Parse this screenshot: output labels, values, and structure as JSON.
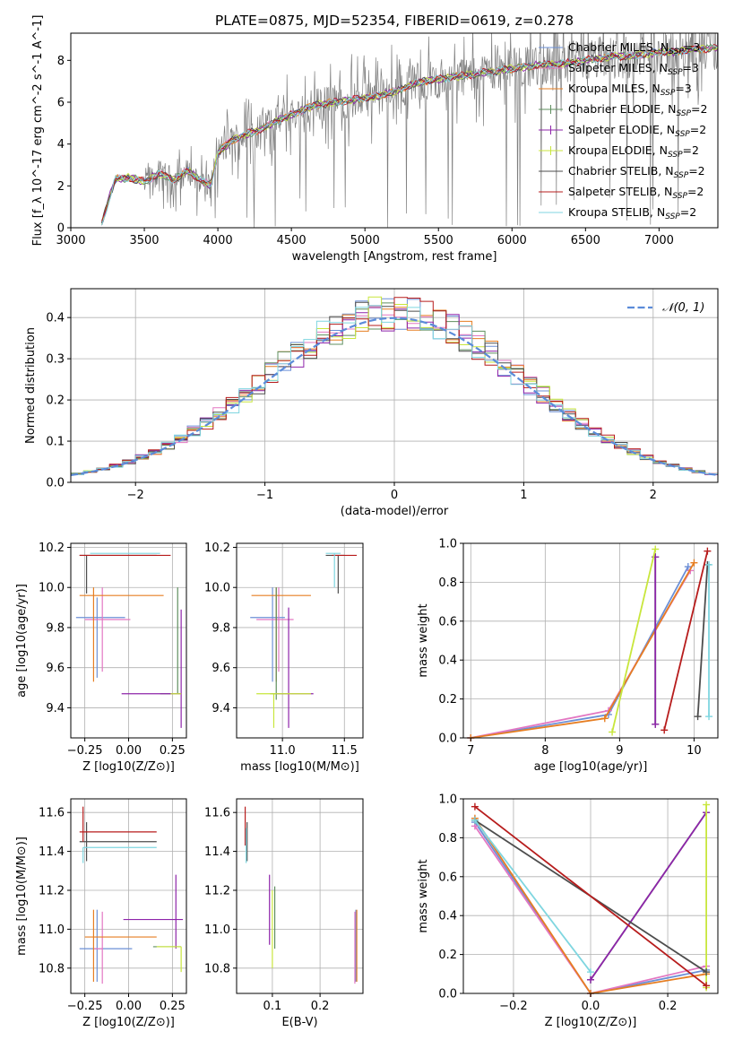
{
  "figure": {
    "title": "PLATE=0875, MJD=52354, FIBERID=0619, z=0.278"
  },
  "colors": {
    "chabrier_miles": "#6b8fd6",
    "salpeter_miles": "#e377c2",
    "kroupa_miles": "#e67e22",
    "chabrier_elodie": "#5f8f5f",
    "salpeter_elodie": "#8e24aa",
    "kroupa_elodie": "#c8e63c",
    "chabrier_stelib": "#4d4d4d",
    "salpeter_stelib": "#b71c1c",
    "kroupa_stelib": "#7fd6e0",
    "data_spectrum": "#808080",
    "gaussian": "#5b8bd9",
    "grid": "#b0b0b0"
  },
  "chart_data": [
    {
      "id": "spectrum",
      "type": "line",
      "xlabel": "wavelength [Angstrom, rest frame]",
      "ylabel": "Flux [f_λ 10^-17 erg cm^-2 s^-1 A^-1]",
      "xlim": [
        3000,
        7400
      ],
      "ylim": [
        0,
        9.3
      ],
      "xticks": [
        3000,
        3500,
        4000,
        4500,
        5000,
        5500,
        6000,
        6500,
        7000
      ],
      "yticks": [
        0,
        2,
        4,
        6,
        8
      ],
      "grid": false,
      "legend_position": "top-right",
      "legend": [
        {
          "label": "Chabrier MILES, N",
          "sub": "SSP",
          "tail": "=3",
          "color": "#6b8fd6"
        },
        {
          "label": "Salpeter MILES, N",
          "sub": "SSP",
          "tail": "=3",
          "color": "#e377c2"
        },
        {
          "label": "Kroupa MILES, N",
          "sub": "SSP",
          "tail": "=3",
          "color": "#e67e22"
        },
        {
          "label": "Chabrier ELODIE, N",
          "sub": "SSP",
          "tail": "=2",
          "color": "#5f8f5f"
        },
        {
          "label": "Salpeter ELODIE, N",
          "sub": "SSP",
          "tail": "=2",
          "color": "#8e24aa"
        },
        {
          "label": "Kroupa ELODIE, N",
          "sub": "SSP",
          "tail": "=2",
          "color": "#c8e63c"
        },
        {
          "label": "Chabrier STELIB, N",
          "sub": "SSP",
          "tail": "=2",
          "color": "#4d4d4d"
        },
        {
          "label": "Salpeter STELIB, N",
          "sub": "SSP",
          "tail": "=2",
          "color": "#b71c1c"
        },
        {
          "label": "Kroupa STELIB, N",
          "sub": "SSP",
          "tail": "=2",
          "color": "#7fd6e0"
        }
      ],
      "continuum": {
        "x": [
          3210,
          3300,
          3400,
          3500,
          3600,
          3700,
          3800,
          3900,
          3950,
          4000,
          4100,
          4200,
          4300,
          4400,
          4500,
          4600,
          4700,
          4800,
          4900,
          5000,
          5100,
          5200,
          5300,
          5400,
          5500,
          5600,
          5700,
          5800,
          5900,
          6000,
          6100,
          6200,
          6300,
          6400,
          6500,
          6600,
          6700,
          6800,
          6900,
          7000,
          7100,
          7200,
          7400
        ],
        "y": [
          0.2,
          2.3,
          2.4,
          2.2,
          2.6,
          2.3,
          2.7,
          2.2,
          2.0,
          3.6,
          4.2,
          4.5,
          4.7,
          5.1,
          5.4,
          5.7,
          5.9,
          6.0,
          6.1,
          6.2,
          6.3,
          6.5,
          6.8,
          7.0,
          7.1,
          7.2,
          7.3,
          7.4,
          7.5,
          7.6,
          7.7,
          7.8,
          7.8,
          7.9,
          8.0,
          8.1,
          8.2,
          8.2,
          8.3,
          8.4,
          8.4,
          8.5,
          8.6
        ]
      }
    },
    {
      "id": "residuals",
      "type": "line",
      "xlabel": "(data-model)/error",
      "ylabel": "Normed distribution",
      "xlim": [
        -2.5,
        2.5
      ],
      "ylim": [
        0,
        0.47
      ],
      "xticks": [
        -2,
        -1,
        0,
        1,
        2
      ],
      "yticks": [
        0.0,
        0.1,
        0.2,
        0.3,
        0.4
      ],
      "grid": true,
      "legend_position": "top-right",
      "legend": [
        {
          "label": "𝒩(0, 1)",
          "color": "#5b8bd9"
        }
      ]
    },
    {
      "id": "age_vs_Z",
      "type": "scatter",
      "xlabel": "Z [log10(Z/Z⊙)]",
      "ylabel": "age [log10(age/yr)]",
      "xlim": [
        -0.33,
        0.33
      ],
      "ylim": [
        9.25,
        10.22
      ],
      "xticks": [
        -0.25,
        0.0,
        0.25
      ],
      "yticks": [
        9.4,
        9.6,
        9.8,
        10.0,
        10.2
      ],
      "grid": true,
      "errorbars": [
        {
          "c": "#6b8fd6",
          "x": -0.18,
          "y": 9.85,
          "xe": [
            0.12,
            0.16
          ],
          "ye": [
            0.3,
            0.1
          ]
        },
        {
          "c": "#e377c2",
          "x": -0.15,
          "y": 9.84,
          "xe": [
            0.1,
            0.16
          ],
          "ye": [
            0.26,
            0.16
          ]
        },
        {
          "c": "#e67e22",
          "x": -0.2,
          "y": 9.96,
          "xe": [
            0.08,
            0.4
          ],
          "ye": [
            0.43,
            0.04
          ]
        },
        {
          "c": "#5f8f5f",
          "x": 0.28,
          "y": 9.47,
          "xe": [
            0.1,
            0.02
          ],
          "ye": [
            0.0,
            0.53
          ]
        },
        {
          "c": "#8e24aa",
          "x": 0.3,
          "y": 9.47,
          "xe": [
            0.34,
            0.0
          ],
          "ye": [
            0.17,
            0.42
          ]
        },
        {
          "c": "#c8e63c",
          "x": 0.29,
          "y": 9.47,
          "xe": [
            0.05,
            0.01
          ],
          "ye": [
            0.0,
            0.0
          ]
        },
        {
          "c": "#4d4d4d",
          "x": -0.24,
          "y": 10.16,
          "xe": [
            0.04,
            0.4
          ],
          "ye": [
            0.19,
            0.0
          ]
        },
        {
          "c": "#b71c1c",
          "x": -0.24,
          "y": 10.16,
          "xe": [
            0.04,
            0.48
          ],
          "ye": [
            0.0,
            0.0
          ]
        },
        {
          "c": "#7fd6e0",
          "x": -0.22,
          "y": 10.17,
          "xe": [
            0.0,
            0.4
          ],
          "ye": [
            0.0,
            0.0
          ]
        }
      ]
    },
    {
      "id": "age_vs_mass",
      "type": "scatter",
      "xlabel": "mass [log10(M/M⊙)]",
      "ylabel": "",
      "xlim": [
        10.63,
        11.65
      ],
      "ylim": [
        9.25,
        10.22
      ],
      "xticks": [
        11.0,
        11.5
      ],
      "yticks": [
        9.4,
        9.6,
        9.8,
        10.0,
        10.2
      ],
      "grid": true,
      "errorbars": [
        {
          "c": "#6b8fd6",
          "x": 10.92,
          "y": 9.85,
          "xe": [
            0.18,
            0.1
          ],
          "ye": [
            0.32,
            0.15
          ]
        },
        {
          "c": "#e377c2",
          "x": 10.97,
          "y": 9.84,
          "xe": [
            0.18,
            0.12
          ],
          "ye": [
            0.26,
            0.16
          ]
        },
        {
          "c": "#e67e22",
          "x": 10.95,
          "y": 9.96,
          "xe": [
            0.2,
            0.28
          ],
          "ye": [
            0.43,
            0.04
          ]
        },
        {
          "c": "#5f8f5f",
          "x": 10.95,
          "y": 9.47,
          "xe": [
            0.05,
            0.1
          ],
          "ye": [
            0.03,
            0.53
          ]
        },
        {
          "c": "#8e24aa",
          "x": 11.05,
          "y": 9.47,
          "xe": [
            0.1,
            0.2
          ],
          "ye": [
            0.17,
            0.43
          ]
        },
        {
          "c": "#c8e63c",
          "x": 10.93,
          "y": 9.47,
          "xe": [
            0.14,
            0.3
          ],
          "ye": [
            0.17,
            0.0
          ]
        },
        {
          "c": "#4d4d4d",
          "x": 11.45,
          "y": 10.16,
          "xe": [
            0.1,
            0.05
          ],
          "ye": [
            0.19,
            0.0
          ]
        },
        {
          "c": "#b71c1c",
          "x": 11.5,
          "y": 10.16,
          "xe": [
            0.1,
            0.1
          ],
          "ye": [
            0.0,
            0.0
          ]
        },
        {
          "c": "#7fd6e0",
          "x": 11.42,
          "y": 10.17,
          "xe": [
            0.07,
            0.05
          ],
          "ye": [
            0.17,
            0.0
          ]
        }
      ]
    },
    {
      "id": "weight_vs_age",
      "type": "line",
      "xlabel": "age [log10(age/yr)]",
      "ylabel": "mass weight",
      "xlim": [
        6.9,
        10.32
      ],
      "ylim": [
        0,
        1
      ],
      "xticks": [
        7,
        8,
        9,
        10
      ],
      "yticks": [
        0.0,
        0.2,
        0.4,
        0.6,
        0.8,
        1.0
      ],
      "grid": true,
      "series": [
        {
          "c": "#6b8fd6",
          "x": [
            7.0,
            8.85,
            9.92
          ],
          "y": [
            0.0,
            0.12,
            0.88
          ]
        },
        {
          "c": "#e377c2",
          "x": [
            7.0,
            8.85,
            9.95
          ],
          "y": [
            0.0,
            0.14,
            0.86
          ]
        },
        {
          "c": "#e67e22",
          "x": [
            7.0,
            8.8,
            10.0
          ],
          "y": [
            0.0,
            0.1,
            0.9
          ]
        },
        {
          "c": "#5f8f5f",
          "x": [
            9.48,
            9.48
          ],
          "y": [
            0.07,
            0.93
          ]
        },
        {
          "c": "#8e24aa",
          "x": [
            9.48,
            9.48
          ],
          "y": [
            0.07,
            0.93
          ]
        },
        {
          "c": "#c8e63c",
          "x": [
            8.9,
            9.48
          ],
          "y": [
            0.03,
            0.97
          ]
        },
        {
          "c": "#4d4d4d",
          "x": [
            10.05,
            10.18
          ],
          "y": [
            0.11,
            0.89
          ]
        },
        {
          "c": "#b71c1c",
          "x": [
            9.6,
            10.18
          ],
          "y": [
            0.04,
            0.96
          ]
        },
        {
          "c": "#7fd6e0",
          "x": [
            10.2,
            10.2
          ],
          "y": [
            0.11,
            0.89
          ]
        }
      ]
    },
    {
      "id": "mass_vs_Z",
      "type": "scatter",
      "xlabel": "Z [log10(Z/Z⊙)]",
      "ylabel": "mass [log10(M/M⊙)]",
      "xlim": [
        -0.33,
        0.33
      ],
      "ylim": [
        10.67,
        11.67
      ],
      "xticks": [
        -0.25,
        0.0,
        0.25
      ],
      "yticks": [
        10.8,
        11.0,
        11.2,
        11.4,
        11.6
      ],
      "grid": true,
      "errorbars": [
        {
          "c": "#6b8fd6",
          "x": -0.18,
          "y": 10.9,
          "xe": [
            0.1,
            0.2
          ],
          "ye": [
            0.17,
            0.2
          ]
        },
        {
          "c": "#e377c2",
          "x": -0.15,
          "y": 10.9,
          "xe": [
            0.05,
            0.0
          ],
          "ye": [
            0.18,
            0.19
          ]
        },
        {
          "c": "#e67e22",
          "x": -0.2,
          "y": 10.96,
          "xe": [
            0.05,
            0.36
          ],
          "ye": [
            0.23,
            0.14
          ]
        },
        {
          "c": "#5f8f5f",
          "x": 0.28,
          "y": 10.91,
          "xe": [
            0.14,
            0.02
          ],
          "ye": [
            0.0,
            0.0
          ]
        },
        {
          "c": "#8e24aa",
          "x": 0.27,
          "y": 11.05,
          "xe": [
            0.3,
            0.04
          ],
          "ye": [
            0.15,
            0.23
          ]
        },
        {
          "c": "#c8e63c",
          "x": 0.3,
          "y": 10.91,
          "xe": [
            0.14,
            0.0
          ],
          "ye": [
            0.13,
            0.0
          ]
        },
        {
          "c": "#4d4d4d",
          "x": -0.24,
          "y": 11.45,
          "xe": [
            0.04,
            0.4
          ],
          "ye": [
            0.1,
            0.1
          ]
        },
        {
          "c": "#b71c1c",
          "x": -0.26,
          "y": 11.5,
          "xe": [
            0.02,
            0.42
          ],
          "ye": [
            0.05,
            0.13
          ]
        },
        {
          "c": "#7fd6e0",
          "x": -0.26,
          "y": 11.42,
          "xe": [
            0.0,
            0.42
          ],
          "ye": [
            0.08,
            0.0
          ]
        }
      ]
    },
    {
      "id": "mass_vs_ebv",
      "type": "scatter",
      "xlabel": "E(B-V)",
      "ylabel": "",
      "xlim": [
        0.025,
        0.29
      ],
      "ylim": [
        10.67,
        11.67
      ],
      "xticks": [
        0.1,
        0.2
      ],
      "yticks": [
        10.8,
        11.0,
        11.2,
        11.4,
        11.6
      ],
      "grid": true,
      "errorbars": [
        {
          "c": "#6b8fd6",
          "x": 0.275,
          "y": 10.9,
          "xe": [
            0,
            0
          ],
          "ye": [
            0.17,
            0.2
          ]
        },
        {
          "c": "#e377c2",
          "x": 0.273,
          "y": 10.9,
          "xe": [
            0,
            0
          ],
          "ye": [
            0.18,
            0.19
          ]
        },
        {
          "c": "#e67e22",
          "x": 0.277,
          "y": 10.96,
          "xe": [
            0,
            0
          ],
          "ye": [
            0.23,
            0.14
          ]
        },
        {
          "c": "#5f8f5f",
          "x": 0.105,
          "y": 11.05,
          "xe": [
            0,
            0
          ],
          "ye": [
            0.15,
            0.17
          ]
        },
        {
          "c": "#8e24aa",
          "x": 0.094,
          "y": 11.1,
          "xe": [
            0,
            0
          ],
          "ye": [
            0.18,
            0.18
          ]
        },
        {
          "c": "#c8e63c",
          "x": 0.1,
          "y": 11.0,
          "xe": [
            0,
            0
          ],
          "ye": [
            0.2,
            0.2
          ]
        },
        {
          "c": "#4d4d4d",
          "x": 0.047,
          "y": 11.45,
          "xe": [
            0,
            0
          ],
          "ye": [
            0.1,
            0.1
          ]
        },
        {
          "c": "#b71c1c",
          "x": 0.043,
          "y": 11.5,
          "xe": [
            0,
            0
          ],
          "ye": [
            0.07,
            0.13
          ]
        },
        {
          "c": "#7fd6e0",
          "x": 0.045,
          "y": 11.42,
          "xe": [
            0,
            0
          ],
          "ye": [
            0.08,
            0.1
          ]
        }
      ]
    },
    {
      "id": "weight_vs_Z",
      "type": "line",
      "xlabel": "Z [log10(Z/Z⊙)]",
      "ylabel": "mass weight",
      "xlim": [
        -0.33,
        0.33
      ],
      "ylim": [
        0,
        1
      ],
      "xticks": [
        -0.2,
        0.0,
        0.2
      ],
      "yticks": [
        0.0,
        0.2,
        0.4,
        0.6,
        0.8,
        1.0
      ],
      "grid": true,
      "series": [
        {
          "c": "#6b8fd6",
          "x": [
            -0.3,
            0.0,
            0.3
          ],
          "y": [
            0.88,
            0.0,
            0.12
          ]
        },
        {
          "c": "#e377c2",
          "x": [
            -0.3,
            0.0,
            0.3
          ],
          "y": [
            0.86,
            0.0,
            0.14
          ]
        },
        {
          "c": "#e67e22",
          "x": [
            -0.3,
            0.0,
            0.3
          ],
          "y": [
            0.9,
            0.0,
            0.1
          ]
        },
        {
          "c": "#5f8f5f",
          "x": [
            0.0,
            0.3
          ],
          "y": [
            0.07,
            0.93
          ]
        },
        {
          "c": "#8e24aa",
          "x": [
            0.0,
            0.3
          ],
          "y": [
            0.07,
            0.93
          ]
        },
        {
          "c": "#c8e63c",
          "x": [
            0.3,
            0.3
          ],
          "y": [
            0.03,
            0.97
          ]
        },
        {
          "c": "#4d4d4d",
          "x": [
            -0.3,
            0.3
          ],
          "y": [
            0.89,
            0.11
          ]
        },
        {
          "c": "#b71c1c",
          "x": [
            -0.3,
            0.3
          ],
          "y": [
            0.96,
            0.04
          ]
        },
        {
          "c": "#7fd6e0",
          "x": [
            -0.3,
            0.0
          ],
          "y": [
            0.89,
            0.11
          ]
        }
      ]
    }
  ]
}
